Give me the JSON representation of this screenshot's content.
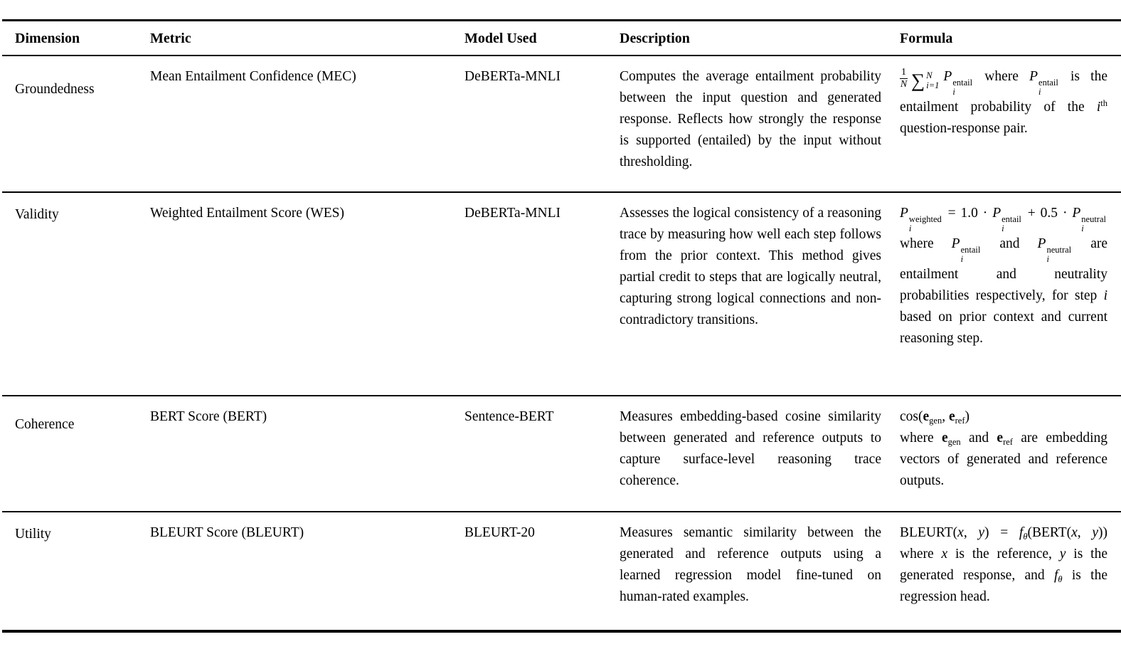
{
  "colors": {
    "text": "#000000",
    "rule": "#000000",
    "background": "#ffffff"
  },
  "table": {
    "columns": [
      "Dimension",
      "Metric",
      "Model Used",
      "Description",
      "Formula"
    ],
    "rows": [
      {
        "dimension": "Groundedness",
        "metric": "Mean Entailment Confidence (MEC)",
        "model": "DeBERTa-MNLI",
        "description": "Computes the average entailment probability between the input question and generated response. Reflects how strongly the response is supported (entailed) by the input without thresholding.",
        "formula": [
          {
            "k": "frac",
            "num": "1",
            "den": "N"
          },
          {
            "k": "sum",
            "top": "N",
            "bot": "i=1"
          },
          {
            "k": "var",
            "v": "P",
            "sup": "entail",
            "sub": "i",
            "si": true
          },
          {
            "k": "t",
            "v": " where "
          },
          {
            "k": "var",
            "v": "P",
            "sup": "entail",
            "sub": "i",
            "si": true
          },
          {
            "k": "t",
            "v": " is the entailment probability of the "
          },
          {
            "k": "var",
            "v": "i",
            "sup": "th"
          },
          {
            "k": "t",
            "v": " question-response pair."
          }
        ]
      },
      {
        "dimension": "Validity",
        "metric": "Weighted Entailment Score (WES)",
        "model": "DeBERTa-MNLI",
        "description": "Assesses the logical consistency of a reasoning trace by measuring how well each step follows from the prior context. This method gives partial credit to steps that are logically neutral, capturing strong logical connections and non-contradictory transitions.",
        "formula": [
          {
            "k": "var",
            "v": "P",
            "sup": "weighted",
            "sub": "i",
            "si": true
          },
          {
            "k": "t",
            "v": " = 1.0 · "
          },
          {
            "k": "var",
            "v": "P",
            "sup": "entail",
            "sub": "i",
            "si": true
          },
          {
            "k": "t",
            "v": " + 0.5 · "
          },
          {
            "k": "var",
            "v": "P",
            "sup": "neutral",
            "sub": "i",
            "si": true
          },
          {
            "k": "t",
            "v": " where "
          },
          {
            "k": "var",
            "v": "P",
            "sup": "entail",
            "sub": "i",
            "si": true
          },
          {
            "k": "t",
            "v": " and "
          },
          {
            "k": "var",
            "v": "P",
            "sup": "neutral",
            "sub": "i",
            "si": true
          },
          {
            "k": "t",
            "v": " are entailment and neutrality probabilities respectively, for step "
          },
          {
            "k": "var",
            "v": "i"
          },
          {
            "k": "t",
            "v": " based on prior context and current reasoning step."
          }
        ]
      },
      {
        "dimension": "Coherence",
        "metric": "BERT Score (BERT)",
        "model": "Sentence-BERT",
        "description": "Measures embedding-based cosine similarity between generated and reference outputs to capture surface-level reasoning trace coherence.",
        "formula": [
          {
            "k": "t",
            "v": "cos("
          },
          {
            "k": "bvar",
            "v": "e",
            "sub": "gen"
          },
          {
            "k": "t",
            "v": ", "
          },
          {
            "k": "bvar",
            "v": "e",
            "sub": "ref"
          },
          {
            "k": "t",
            "v": ")"
          },
          {
            "k": "br"
          },
          {
            "k": "t",
            "v": "where "
          },
          {
            "k": "bvar",
            "v": "e",
            "sub": "gen"
          },
          {
            "k": "t",
            "v": " and "
          },
          {
            "k": "bvar",
            "v": "e",
            "sub": "ref"
          },
          {
            "k": "t",
            "v": " are embedding vectors of generated and reference outputs."
          }
        ]
      },
      {
        "dimension": "Utility",
        "metric": "BLEURT Score (BLEURT)",
        "model": "BLEURT-20",
        "description": "Measures semantic similarity between the generated and reference outputs using a learned regression model fine-tuned on human-rated examples.",
        "formula": [
          {
            "k": "t",
            "v": "BLEURT("
          },
          {
            "k": "var",
            "v": "x"
          },
          {
            "k": "t",
            "v": ", "
          },
          {
            "k": "var",
            "v": "y"
          },
          {
            "k": "t",
            "v": ") = "
          },
          {
            "k": "var",
            "v": "f",
            "sub": "θ",
            "si": true
          },
          {
            "k": "t",
            "v": "(BERT("
          },
          {
            "k": "var",
            "v": "x"
          },
          {
            "k": "t",
            "v": ", "
          },
          {
            "k": "var",
            "v": "y"
          },
          {
            "k": "t",
            "v": ")) where "
          },
          {
            "k": "var",
            "v": "x"
          },
          {
            "k": "t",
            "v": " is the reference, "
          },
          {
            "k": "var",
            "v": "y"
          },
          {
            "k": "t",
            "v": " is the generated response, and "
          },
          {
            "k": "var",
            "v": "f",
            "sub": "θ",
            "si": true
          },
          {
            "k": "t",
            "v": " is the regression head."
          }
        ]
      }
    ]
  }
}
